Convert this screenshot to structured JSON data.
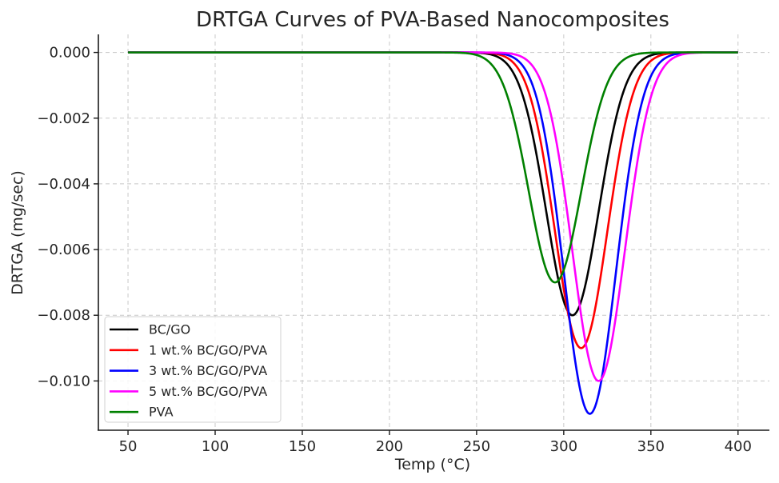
{
  "chart_data": {
    "type": "line",
    "title": "DRTGA Curves of PVA-Based Nanocomposites",
    "xlabel": "Temp (°C)",
    "ylabel": "DRTGA (mg/sec)",
    "xlim": [
      33,
      418
    ],
    "ylim": [
      -0.0115,
      0.00055
    ],
    "xticks": [
      50,
      100,
      150,
      200,
      250,
      300,
      350,
      400
    ],
    "xtick_labels": [
      "50",
      "100",
      "150",
      "200",
      "250",
      "300",
      "350",
      "400"
    ],
    "yticks": [
      0.0,
      -0.002,
      -0.004,
      -0.006,
      -0.008,
      -0.01
    ],
    "ytick_labels": [
      "0.000",
      "−0.002",
      "−0.004",
      "−0.006",
      "−0.008",
      "−0.010"
    ],
    "grid": true,
    "legend_position": "bottom-left",
    "x_range": [
      50,
      400
    ],
    "curve_model": "gaussian dip: y = -depth * exp(-(x - peak_temp)^2 / (2 * width^2))",
    "series": [
      {
        "name": "BC/GO",
        "color": "#000000",
        "peak_temp": 305,
        "depth": 0.008,
        "width": 15,
        "min_value": -0.008
      },
      {
        "name": "1 wt.% BC/GO/PVA",
        "color": "#ff0000",
        "peak_temp": 310,
        "depth": 0.009,
        "width": 15,
        "min_value": -0.009
      },
      {
        "name": "3 wt.% BC/GO/PVA",
        "color": "#0000ff",
        "peak_temp": 315,
        "depth": 0.011,
        "width": 15,
        "min_value": -0.011
      },
      {
        "name": "5 wt.% BC/GO/PVA",
        "color": "#ff00ff",
        "peak_temp": 320,
        "depth": 0.01,
        "width": 15,
        "min_value": -0.01
      },
      {
        "name": "PVA",
        "color": "#008000",
        "peak_temp": 295,
        "depth": 0.007,
        "width": 15,
        "min_value": -0.007
      }
    ]
  }
}
